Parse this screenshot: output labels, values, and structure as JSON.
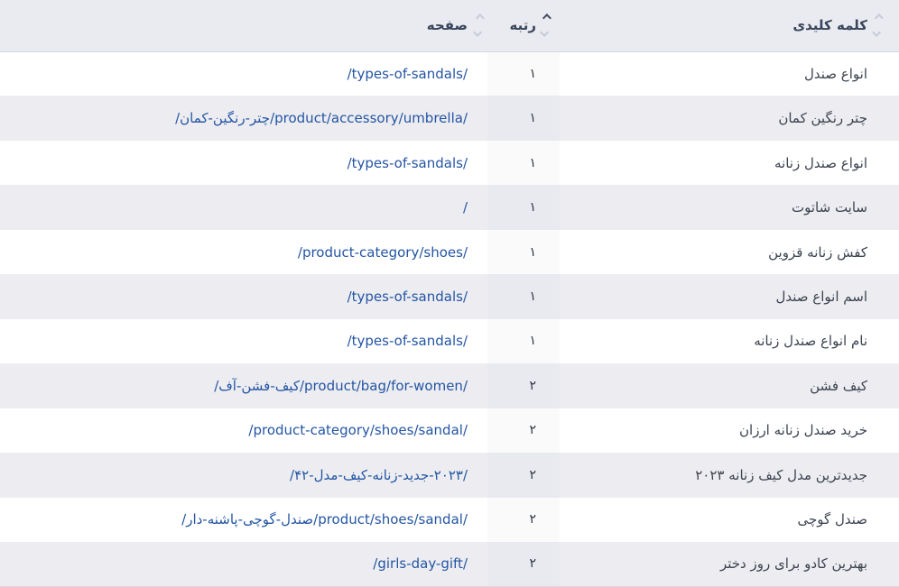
{
  "table": {
    "columns": [
      {
        "id": "keyword",
        "label": "کلمه کلیدی",
        "sort": "none"
      },
      {
        "id": "rank",
        "label": "رتبه",
        "sort": "asc"
      },
      {
        "id": "page",
        "label": "صفحه",
        "sort": "none"
      }
    ],
    "rows": [
      {
        "keyword": "انواع صندل",
        "rank": "۱",
        "page": "/types-of-sandals/"
      },
      {
        "keyword": "چتر رنگین کمان",
        "rank": "۱",
        "page": "/product/accessory/umbrella/چتر-رنگین-کمان/"
      },
      {
        "keyword": "انواع صندل زنانه",
        "rank": "۱",
        "page": "/types-of-sandals/"
      },
      {
        "keyword": "سایت شاتوت",
        "rank": "۱",
        "page": "/"
      },
      {
        "keyword": "کفش زنانه قزوین",
        "rank": "۱",
        "page": "/product-category/shoes/"
      },
      {
        "keyword": "اسم انواع صندل",
        "rank": "۱",
        "page": "/types-of-sandals/"
      },
      {
        "keyword": "نام انواع صندل زنانه",
        "rank": "۱",
        "page": "/types-of-sandals/"
      },
      {
        "keyword": "کیف فشن",
        "rank": "۲",
        "page": "/product/bag/for-women/کیف-فشن-آف/"
      },
      {
        "keyword": "خرید صندل زنانه ارزان",
        "rank": "۲",
        "page": "/product-category/shoes/sandal/"
      },
      {
        "keyword": "جدیدترین مدل کیف زنانه ۲۰۲۳",
        "rank": "۲",
        "page": "/۲۰۲۳-جدید-زنانه-کیف-مدل-۴۲/"
      },
      {
        "keyword": "صندل گوچی",
        "rank": "۲",
        "page": "/product/shoes/sandal/صندل-گوچی-پاشنه-دار/"
      },
      {
        "keyword": "بهترین کادو برای روز دختر",
        "rank": "۲",
        "page": "/girls-day-gift/"
      }
    ]
  },
  "colors": {
    "link": "#2355a3",
    "header_bg": "#eaebf0",
    "row_alt_bg": "#ededf1",
    "sort_active": "#414d63",
    "sort_inactive": "#c7ccd5"
  },
  "icons": {
    "sort_ascending": "chevron-up",
    "sort_descending": "chevron-down"
  }
}
